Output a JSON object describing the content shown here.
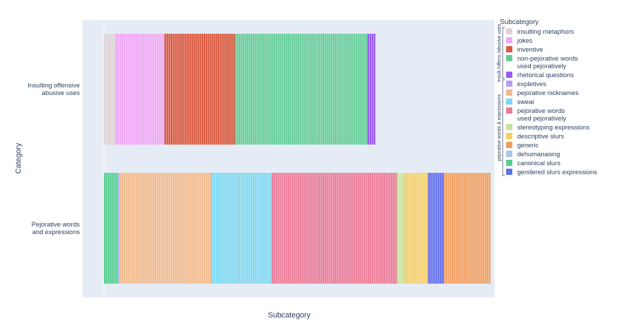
{
  "chart_data": {
    "type": "bar",
    "orientation": "horizontal",
    "stacked": true,
    "xlabel": "Subcategory",
    "ylabel": "Category",
    "categories": [
      "Insulting offensive abusive uses",
      "Pejorative words and expressions"
    ],
    "category_labels": [
      [
        "Insulting offensive",
        "abusive uses"
      ],
      [
        "Pejorative words",
        "and expressions"
      ]
    ],
    "xlim": [
      0,
      200
    ],
    "grid": false,
    "legend": {
      "title": "Subcategory",
      "position": "right",
      "groups": [
        {
          "title": "Insult./offens./abusive uses",
          "items": [
            {
              "label": [
                "insulting metaphors"
              ],
              "color": "#dcd3d6"
            },
            {
              "label": [
                "jokes"
              ],
              "color": "#eda8f4"
            },
            {
              "label": [
                "inventive"
              ],
              "color": "#d9593f"
            },
            {
              "label": [
                "non-pejorative words",
                "used pejoratively"
              ],
              "color": "#66cc9a"
            },
            {
              "label": [
                "rhetorical questions"
              ],
              "color": "#9b5cf0"
            }
          ]
        },
        {
          "title": "pejorative words & expressions",
          "items": [
            {
              "label": [
                "expletives"
              ],
              "color": "#b7a0f0"
            },
            {
              "label": [
                "pejorative nicknames"
              ],
              "color": "#efba8f"
            },
            {
              "label": [
                "swear"
              ],
              "color": "#7fd7f2"
            },
            {
              "label": [
                "pejorative words",
                "used pejoratively"
              ],
              "color": "#ea7b98"
            },
            {
              "label": [
                "stereotyping expressions"
              ],
              "color": "#c6e49c"
            },
            {
              "label": [
                "descriptive slurs"
              ],
              "color": "#f7cf63"
            },
            {
              "label": [
                "generic"
              ],
              "color": "#ef9f63"
            },
            {
              "label": [
                "dehumanasing"
              ],
              "color": "#a8c4ef"
            },
            {
              "label": [
                "canonical slurs"
              ],
              "color": "#58cc91"
            },
            {
              "label": [
                "gendered slurs expressions"
              ],
              "color": "#6370ee"
            }
          ]
        }
      ]
    },
    "series": [
      {
        "name": "insulting metaphors",
        "color": "#dcd3d6",
        "values": [
          6,
          0
        ]
      },
      {
        "name": "jokes",
        "color": "#eda8f4",
        "values": [
          25,
          0
        ]
      },
      {
        "name": "inventive",
        "color": "#d9593f",
        "values": [
          36,
          0
        ]
      },
      {
        "name": "non-pejorative words used pejoratively",
        "color": "#66cc9a",
        "values": [
          68,
          0
        ]
      },
      {
        "name": "rhetorical questions",
        "color": "#9b5cf0",
        "values": [
          4,
          0
        ]
      },
      {
        "name": "canonical slurs",
        "color": "#58cc91",
        "values": [
          0,
          7
        ]
      },
      {
        "name": "dehumanasing",
        "color": "#a8c4ef",
        "values": [
          0,
          1
        ]
      },
      {
        "name": "pejorative nicknames",
        "color": "#efba8f",
        "values": [
          0,
          47
        ]
      },
      {
        "name": "swear",
        "color": "#7fd7f2",
        "values": [
          0,
          31
        ]
      },
      {
        "name": "pejorative words used pejoratively",
        "color": "#ea7b98",
        "values": [
          0,
          64
        ]
      },
      {
        "name": "stereotyping expressions",
        "color": "#c6e49c",
        "values": [
          0,
          4
        ]
      },
      {
        "name": "descriptive slurs",
        "color": "#f7cf63",
        "values": [
          0,
          12
        ]
      },
      {
        "name": "gendered slurs expressions",
        "color": "#6370ee",
        "values": [
          0,
          8
        ]
      },
      {
        "name": "generic",
        "color": "#ef9f63",
        "values": [
          0,
          24
        ]
      }
    ]
  }
}
